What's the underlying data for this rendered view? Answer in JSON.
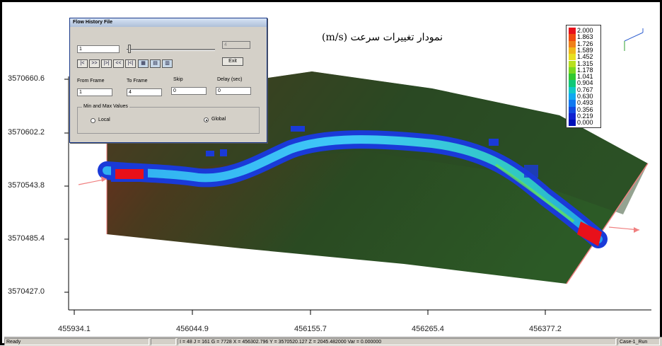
{
  "chart_data": {
    "type": "heatmap",
    "title": "نمودار تغییرات سرعت (m/s)",
    "y_ticks": [
      "3570660.6",
      "3570602.2",
      "3570543.8",
      "3570485.4",
      "3570427.0"
    ],
    "x_ticks": [
      "455934.1",
      "456044.9",
      "456155.7",
      "456265.4",
      "456377.2"
    ],
    "legend_values": [
      "2.000",
      "1.863",
      "1.726",
      "1.589",
      "1.452",
      "1.315",
      "1.178",
      "1.041",
      "0.904",
      "0.767",
      "0.630",
      "0.493",
      "0.356",
      "0.219",
      "0.000"
    ],
    "legend_colors": [
      "#e8101a",
      "#f04a10",
      "#f0801a",
      "#f0b81a",
      "#e8e020",
      "#b8e020",
      "#78d820",
      "#30c830",
      "#10c878",
      "#10c8c8",
      "#10a8f0",
      "#1078f0",
      "#1048e0",
      "#1020d0",
      "#0010b8"
    ]
  },
  "dialog": {
    "title": "Flow History File",
    "frame_value": "1",
    "frame_max": "4",
    "exit_label": "Exit",
    "transport_buttons": [
      "|<",
      ">>",
      "|>|",
      "<<",
      "|<|"
    ],
    "from_frame_label": "From Frame",
    "from_frame_value": "1",
    "to_frame_label": "To Frame",
    "to_frame_value": "4",
    "skip_label": "Skip",
    "skip_value": "0",
    "delay_label": "Delay (sec)",
    "delay_value": "0",
    "group_label": "Min and Max Values",
    "local_label": "Local",
    "global_label": "Global",
    "selected_range": "Global"
  },
  "statusbar": {
    "ready": "Ready",
    "info": "I = 48  J = 161  G = 7728  X = 456302.796  Y = 3570520.127  Z = 2045.482000  Var = 0.000000",
    "case": "Case-1_Run"
  }
}
